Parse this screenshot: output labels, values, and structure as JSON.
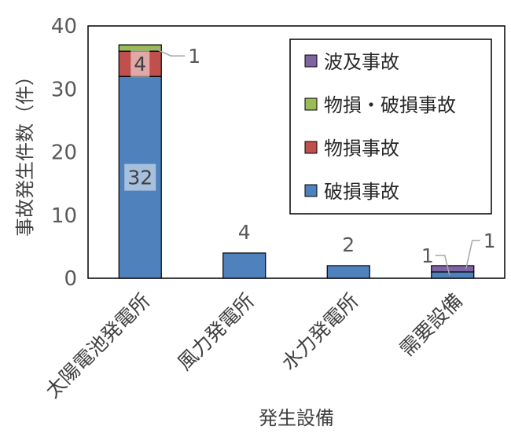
{
  "chart_data": {
    "type": "bar",
    "stacked": true,
    "title": "",
    "xlabel": "発生設備",
    "ylabel": "事故発生件数（件）",
    "ylim": [
      0,
      40
    ],
    "yticks": [
      "0",
      "10",
      "20",
      "30",
      "40"
    ],
    "grid": false,
    "legend_position": "top-right",
    "categories": [
      "太陽電池発電所",
      "風力発電所",
      "水力発電所",
      "需要設備"
    ],
    "series": [
      {
        "name": "破損事故",
        "color": "#4f81bd",
        "values": [
          32,
          4,
          2,
          1
        ]
      },
      {
        "name": "物損事故",
        "color": "#c0504d",
        "values": [
          4,
          0,
          0,
          0
        ]
      },
      {
        "name": "物損・破損事故",
        "color": "#9bbb59",
        "values": [
          1,
          0,
          0,
          0
        ]
      },
      {
        "name": "波及事故",
        "color": "#8064a2",
        "values": [
          0,
          0,
          0,
          1
        ]
      }
    ],
    "data_labels": [
      {
        "text": "32",
        "category": 0,
        "series": 0,
        "placement": "inside"
      },
      {
        "text": "4",
        "category": 0,
        "series": 1,
        "placement": "inside"
      },
      {
        "text": "1",
        "category": 0,
        "series": 2,
        "placement": "callout-right"
      },
      {
        "text": "4",
        "category": 1,
        "series": 0,
        "placement": "above"
      },
      {
        "text": "2",
        "category": 2,
        "series": 0,
        "placement": "above"
      },
      {
        "text": "1",
        "category": 3,
        "series": 0,
        "placement": "callout-left"
      },
      {
        "text": "1",
        "category": 3,
        "series": 3,
        "placement": "callout-right"
      }
    ]
  }
}
